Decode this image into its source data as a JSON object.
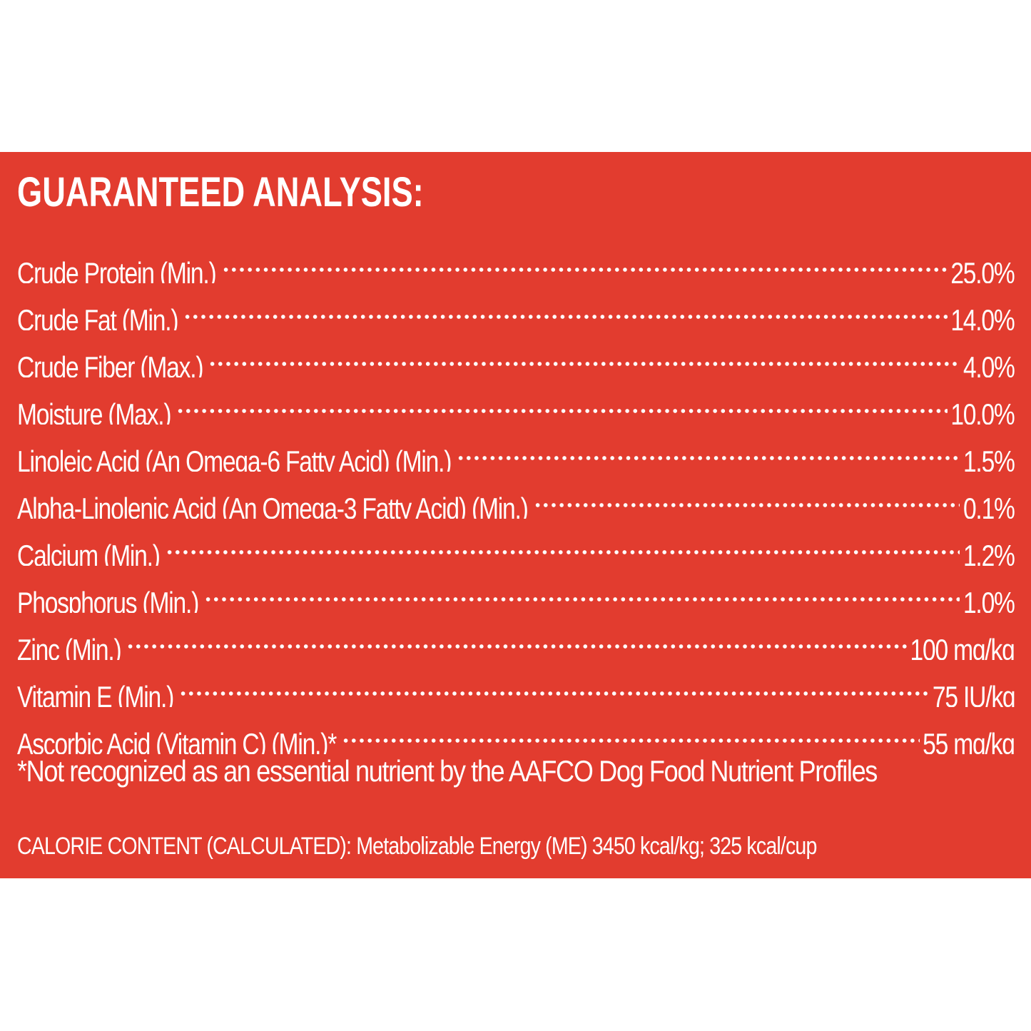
{
  "panel": {
    "background": "#e23c2f",
    "text_color": "#ffffff",
    "title": "GUARANTEED ANALYSIS:"
  },
  "analysis": [
    {
      "label": "Crude Protein (Min.)",
      "value": "25.0%"
    },
    {
      "label": "Crude Fat (Min.)",
      "value": "14.0%"
    },
    {
      "label": "Crude Fiber (Max.)",
      "value": "4.0%"
    },
    {
      "label": "Moisture (Max.)",
      "value": "10.0%"
    },
    {
      "label": "Linoleic Acid (An Omega-6 Fatty Acid) (Min.)",
      "value": "1.5%"
    },
    {
      "label": "Alpha-Linolenic Acid (An Omega-3 Fatty Acid) (Min.)",
      "value": "0.1%"
    },
    {
      "label": "Calcium (Min.)",
      "value": "1.2%"
    },
    {
      "label": "Phosphorus (Min.)",
      "value": "1.0%"
    },
    {
      "label": "Zinc (Min.)",
      "value": "100 mg/kg"
    },
    {
      "label": "Vitamin E (Min.)",
      "value": "75 IU/kg"
    },
    {
      "label": "Ascorbic Acid (Vitamin C) (Min.)*",
      "value": "55 mg/kg"
    }
  ],
  "footnote": "*Not recognized as an essential nutrient by the AAFCO Dog Food Nutrient Profiles",
  "calorie_content": "CALORIE CONTENT (CALCULATED): Metabolizable Energy (ME) 3450 kcal/kg; 325 kcal/cup"
}
